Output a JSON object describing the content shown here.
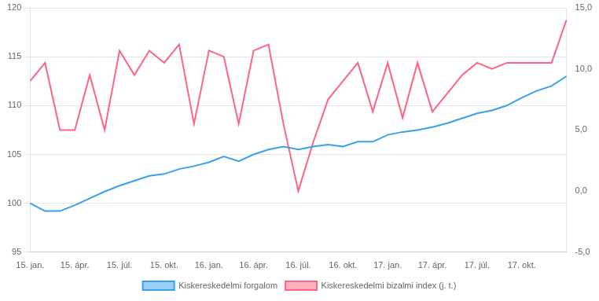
{
  "chart_data": {
    "type": "line",
    "categories": [
      "15. jan.",
      null,
      null,
      "15. ápr.",
      null,
      null,
      "15. júl.",
      null,
      null,
      "15. okt.",
      null,
      null,
      "16. jan.",
      null,
      null,
      "16. ápr.",
      null,
      null,
      "16. júl.",
      null,
      null,
      "16. okt.",
      null,
      null,
      "17. jan.",
      null,
      null,
      "17. ápr.",
      null,
      null,
      "17. júl.",
      null,
      null,
      "17. okt.",
      null,
      null,
      null
    ],
    "series": [
      {
        "name": "Kiskereskedelmi forgalom",
        "values": [
          100.0,
          99.2,
          99.2,
          99.8,
          100.5,
          101.2,
          101.8,
          102.3,
          102.8,
          103.0,
          103.5,
          103.8,
          104.2,
          104.8,
          104.3,
          105.0,
          105.5,
          105.8,
          105.5,
          105.8,
          106.0,
          105.8,
          106.3,
          106.3,
          107.0,
          107.3,
          107.5,
          107.8,
          108.2,
          108.7,
          109.2,
          109.5,
          110.0,
          110.8,
          111.5,
          112.0,
          113.0
        ]
      },
      {
        "name": "Kiskereskedelmi bizalmi index (j. t.)",
        "axis": "y2",
        "values": [
          9.0,
          10.5,
          5.0,
          5.0,
          9.5,
          5.0,
          11.5,
          9.5,
          11.5,
          10.5,
          12.0,
          5.5,
          11.5,
          11.0,
          5.5,
          11.5,
          12.0,
          5.5,
          0.0,
          4.0,
          7.5,
          9.0,
          10.5,
          6.5,
          10.5,
          6.0,
          10.5,
          6.5,
          8.0,
          9.5,
          10.5,
          10.0,
          10.5,
          10.5,
          10.5,
          10.5,
          14.0
        ]
      }
    ],
    "ylim": [
      95,
      120
    ],
    "yticks": [
      95,
      100,
      105,
      110,
      115,
      120
    ],
    "y2lim": [
      -5.0,
      15.0
    ],
    "y2ticks": [
      {
        "value": -5.0,
        "label": "-5,0"
      },
      {
        "value": 0.0,
        "label": "0,0"
      },
      {
        "value": 5.0,
        "label": "5,0"
      },
      {
        "value": 10.0,
        "label": "10,0"
      },
      {
        "value": 15.0,
        "label": "15,0"
      }
    ],
    "grid": true,
    "legend": "bottom"
  }
}
